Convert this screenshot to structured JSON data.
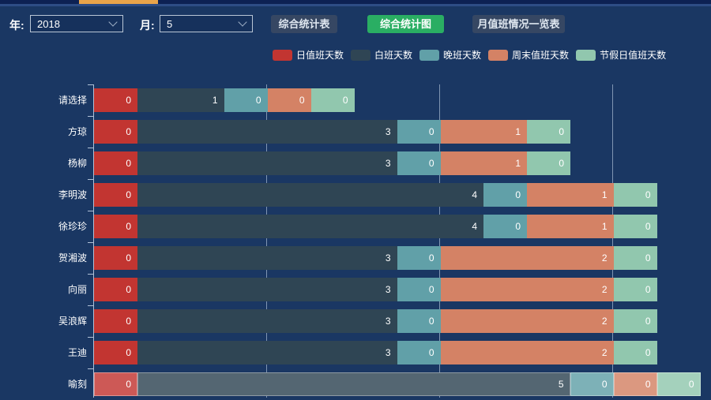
{
  "window": {
    "tab_highlight_color": "#e9a44a"
  },
  "toolbar": {
    "year_label": "年:",
    "year_value": "2018",
    "month_label": "月:",
    "month_value": "5",
    "buttons": [
      {
        "label": "综合统计表",
        "active": false
      },
      {
        "label": "综合统计图",
        "active": true
      },
      {
        "label": "月值班情况一览表",
        "active": false
      }
    ],
    "active_button_color": "#2aae63",
    "inactive_button_color": "#364763"
  },
  "chart_data": {
    "type": "bar",
    "orientation": "horizontal",
    "stacked": true,
    "grid": true,
    "legend_position": "top",
    "categories": [
      "请选择",
      "方琼",
      "杨柳",
      "李明波",
      "徐珍珍",
      "贺湘波",
      "向丽",
      "吴浪辉",
      "王迪",
      "喻刻"
    ],
    "series": [
      {
        "name": "日值班天数",
        "color": "#c23531",
        "values": [
          0,
          0,
          0,
          0,
          0,
          0,
          0,
          0,
          0,
          0
        ]
      },
      {
        "name": "白班天数",
        "color": "#2f4554",
        "values": [
          1,
          3,
          3,
          4,
          4,
          3,
          3,
          3,
          3,
          5
        ]
      },
      {
        "name": "晚班天数",
        "color": "#61a0a8",
        "values": [
          0,
          0,
          0,
          0,
          0,
          0,
          0,
          0,
          0,
          0
        ]
      },
      {
        "name": "周末值班天数",
        "color": "#d48265",
        "values": [
          0,
          1,
          1,
          1,
          1,
          2,
          2,
          2,
          2,
          0
        ]
      },
      {
        "name": "节假日值班天数",
        "color": "#91c7ae",
        "values": [
          0,
          0,
          0,
          0,
          0,
          0,
          0,
          0,
          0,
          0
        ]
      }
    ],
    "highlighted_category": "喻刻",
    "xaxis": {
      "min": 0,
      "gridlines_at": [
        2,
        4,
        6
      ]
    }
  }
}
